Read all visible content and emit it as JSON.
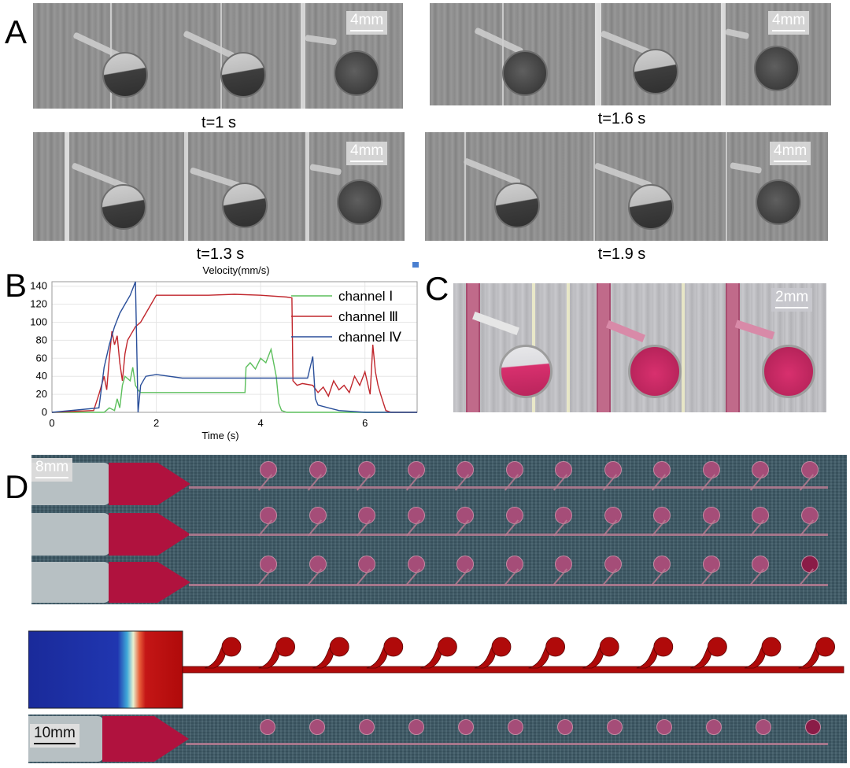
{
  "panels": {
    "a": "A",
    "b": "B",
    "c": "C",
    "d": "D"
  },
  "panel_a": {
    "frames": [
      {
        "time_label": "t=1 s",
        "scale_label": "4mm"
      },
      {
        "time_label": "t=1.6 s",
        "scale_label": "4mm"
      },
      {
        "time_label": "t=1.3 s",
        "scale_label": "4mm"
      },
      {
        "time_label": "t=1.9 s",
        "scale_label": "4mm"
      }
    ]
  },
  "panel_c": {
    "scale_label": "2mm"
  },
  "panel_d": {
    "photo_scale_label": "8mm",
    "bottom_scale_label": "10mm"
  },
  "colors": {
    "channel1": "#5cbf5c",
    "channel3": "#c0262c",
    "channel4": "#2a4f9a",
    "liquid": "#b0123e"
  },
  "chart_data": {
    "type": "line",
    "title": "Velocity(mm/s)",
    "xlabel": "Time (s)",
    "ylabel": "",
    "xlim": [
      0,
      7
    ],
    "ylim": [
      0,
      145
    ],
    "xticks": [
      0,
      2,
      4,
      6
    ],
    "yticks": [
      0,
      20,
      40,
      60,
      80,
      100,
      120,
      140
    ],
    "legend_position": "top-right",
    "series": [
      {
        "name": "channel Ⅰ",
        "color": "#5cbf5c",
        "x": [
          0,
          1.0,
          1.1,
          1.2,
          1.25,
          1.3,
          1.35,
          1.4,
          1.5,
          1.55,
          1.6,
          1.65,
          1.7,
          2.0,
          3.0,
          3.7,
          3.72,
          3.8,
          3.9,
          4.0,
          4.1,
          4.2,
          4.3,
          4.35,
          4.4,
          4.5,
          4.6,
          5.0,
          7.0
        ],
        "y": [
          0,
          0,
          5,
          2,
          15,
          5,
          30,
          40,
          35,
          50,
          30,
          25,
          22,
          22,
          22,
          22,
          50,
          55,
          48,
          60,
          55,
          70,
          40,
          10,
          2,
          0,
          0,
          0,
          0
        ]
      },
      {
        "name": "channel Ⅲ",
        "color": "#c0262c",
        "x": [
          0,
          0.8,
          0.9,
          1.0,
          1.05,
          1.1,
          1.15,
          1.2,
          1.25,
          1.3,
          1.35,
          1.4,
          1.45,
          1.5,
          1.6,
          1.7,
          2.0,
          3.0,
          3.5,
          4.0,
          4.5,
          4.6,
          4.62,
          4.7,
          4.8,
          5.0,
          5.1,
          5.2,
          5.3,
          5.4,
          5.5,
          5.6,
          5.7,
          5.8,
          5.9,
          6.0,
          6.1,
          6.15,
          6.2,
          6.25,
          6.3,
          6.4,
          6.5,
          7.0
        ],
        "y": [
          0,
          2,
          20,
          40,
          25,
          60,
          90,
          75,
          85,
          55,
          35,
          65,
          80,
          85,
          95,
          100,
          130,
          130,
          131,
          130,
          128,
          127,
          35,
          30,
          32,
          30,
          22,
          28,
          18,
          35,
          25,
          30,
          22,
          40,
          30,
          45,
          20,
          75,
          45,
          30,
          20,
          2,
          0,
          0
        ]
      },
      {
        "name": "channel Ⅳ",
        "color": "#2a4f9a",
        "x": [
          0,
          0.9,
          1.0,
          1.1,
          1.2,
          1.3,
          1.4,
          1.5,
          1.6,
          1.65,
          1.7,
          1.8,
          2.0,
          2.5,
          3.0,
          3.7,
          4.0,
          4.5,
          4.9,
          5.0,
          5.05,
          5.1,
          5.3,
          5.5,
          6.0,
          7.0
        ],
        "y": [
          0,
          5,
          50,
          75,
          95,
          110,
          120,
          130,
          145,
          0,
          30,
          40,
          42,
          38,
          38,
          38,
          38,
          38,
          38,
          62,
          15,
          8,
          5,
          2,
          0,
          0
        ]
      }
    ]
  }
}
